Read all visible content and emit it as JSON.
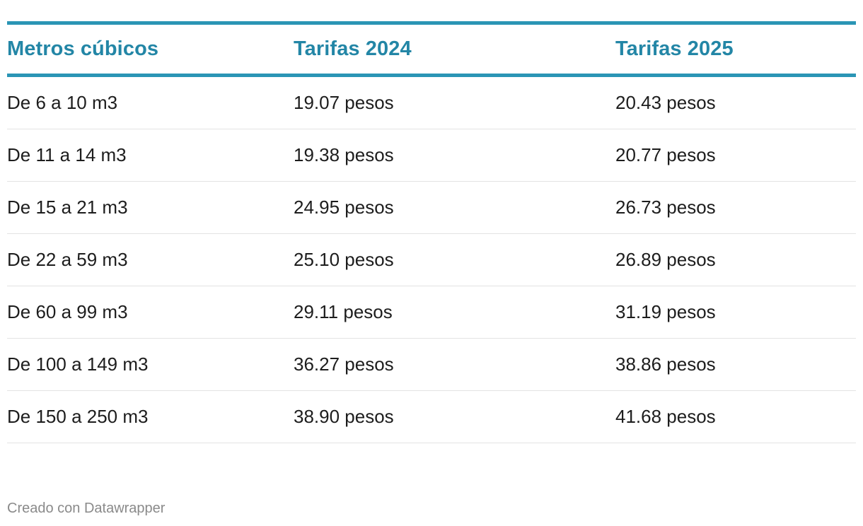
{
  "chart_data": {
    "type": "table",
    "columns": [
      "Metros cúbicos",
      "Tarifas 2024",
      "Tarifas 2025"
    ],
    "rows": [
      [
        "De 6 a 10 m3",
        "19.07 pesos",
        "20.43 pesos"
      ],
      [
        "De 11 a 14 m3",
        "19.38 pesos",
        "20.77 pesos"
      ],
      [
        "De 15 a 21 m3",
        "24.95 pesos",
        "26.73 pesos"
      ],
      [
        "De 22 a 59 m3",
        "25.10 pesos",
        "26.89 pesos"
      ],
      [
        "De 60 a 99 m3",
        "29.11 pesos",
        "31.19 pesos"
      ],
      [
        "De 100 a 149 m3",
        "36.27 pesos",
        "38.86 pesos"
      ],
      [
        "De 150 a 250 m3",
        "38.90 pesos",
        "41.68 pesos"
      ]
    ]
  },
  "footer": {
    "credit": "Creado con Datawrapper"
  },
  "colors": {
    "accent": "#2a95b5",
    "header_text": "#2386a6",
    "body_text": "#1d1d1d",
    "row_divider": "#e3e3e3",
    "footer_text": "#8a8a8a"
  }
}
